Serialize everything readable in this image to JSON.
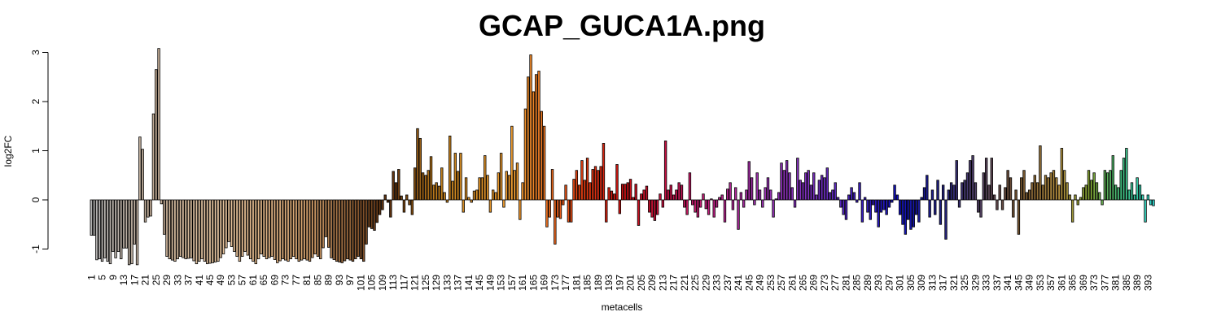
{
  "chart_data": {
    "type": "bar",
    "title": "GCAP_GUCA1A.png",
    "xlabel": "metacells",
    "ylabel": "log2FC",
    "ylim": [
      -1.4,
      3.2
    ],
    "yticks": [
      -1,
      0,
      1,
      2,
      3
    ],
    "x_tick_labels": [
      "1",
      "5",
      "9",
      "13",
      "17",
      "21",
      "25",
      "29",
      "33",
      "37",
      "41",
      "45",
      "49",
      "53",
      "57",
      "61",
      "65",
      "69",
      "73",
      "77",
      "81",
      "85",
      "89",
      "93",
      "97",
      "101",
      "105",
      "109",
      "113",
      "117",
      "121",
      "125",
      "129",
      "133",
      "137",
      "141",
      "145",
      "149",
      "153",
      "157",
      "161",
      "165",
      "169",
      "173",
      "177",
      "181",
      "185",
      "189",
      "193",
      "197",
      "201",
      "205",
      "209",
      "213",
      "217",
      "221",
      "225",
      "229",
      "233",
      "237",
      "241",
      "245",
      "249",
      "253",
      "257",
      "261",
      "265",
      "269",
      "273",
      "277",
      "281",
      "285",
      "289",
      "293",
      "297",
      "301",
      "305",
      "309",
      "313",
      "317",
      "321",
      "325",
      "329",
      "333",
      "337",
      "341",
      "345",
      "349",
      "353",
      "357",
      "361",
      "365",
      "369",
      "373",
      "377",
      "381",
      "385",
      "389",
      "393"
    ],
    "grid": false,
    "legend": "none",
    "anchors": [
      [
        1,
        -0.72
      ],
      [
        2,
        -0.72
      ],
      [
        3,
        -1.22
      ],
      [
        4,
        -1.2
      ],
      [
        5,
        -1.25
      ],
      [
        6,
        -1.18
      ],
      [
        7,
        -1.25
      ],
      [
        8,
        -1.3
      ],
      [
        9,
        -1.05
      ],
      [
        10,
        -1.18
      ],
      [
        11,
        -1.05
      ],
      [
        12,
        -1.2
      ],
      [
        13,
        -0.98
      ],
      [
        14,
        -0.98
      ],
      [
        15,
        -1.32
      ],
      [
        16,
        -1.3
      ],
      [
        17,
        -0.9
      ],
      [
        18,
        -1.32
      ],
      [
        19,
        1.28
      ],
      [
        20,
        1.03
      ],
      [
        21,
        -0.45
      ],
      [
        22,
        -0.35
      ],
      [
        23,
        -0.33
      ],
      [
        24,
        1.75
      ],
      [
        25,
        2.65
      ],
      [
        26,
        3.08
      ],
      [
        27,
        -0.08
      ],
      [
        28,
        -0.7
      ],
      [
        29,
        -1.15
      ],
      [
        30,
        -1.2
      ],
      [
        32,
        -1.25
      ],
      [
        34,
        -1.15
      ],
      [
        36,
        -1.2
      ],
      [
        38,
        -1.18
      ],
      [
        40,
        -1.3
      ],
      [
        42,
        -1.2
      ],
      [
        44,
        -1.3
      ],
      [
        46,
        -1.28
      ],
      [
        48,
        -1.25
      ],
      [
        50,
        -1.1
      ],
      [
        52,
        -0.85
      ],
      [
        54,
        -1.05
      ],
      [
        56,
        -1.25
      ],
      [
        58,
        -1.05
      ],
      [
        60,
        -1.2
      ],
      [
        62,
        -1.3
      ],
      [
        64,
        -1.1
      ],
      [
        66,
        -1.2
      ],
      [
        68,
        -1.15
      ],
      [
        70,
        -1.28
      ],
      [
        72,
        -1.2
      ],
      [
        74,
        -1.25
      ],
      [
        76,
        -1.15
      ],
      [
        78,
        -1.25
      ],
      [
        80,
        -1.2
      ],
      [
        82,
        -1.25
      ],
      [
        84,
        -1.1
      ],
      [
        86,
        -1.2
      ],
      [
        88,
        -0.75
      ],
      [
        90,
        -1.18
      ],
      [
        92,
        -1.25
      ],
      [
        94,
        -1.28
      ],
      [
        96,
        -1.2
      ],
      [
        98,
        -1.25
      ],
      [
        100,
        -1.15
      ],
      [
        102,
        -1.25
      ],
      [
        104,
        -0.55
      ],
      [
        106,
        -0.62
      ],
      [
        108,
        -0.3
      ],
      [
        109,
        -0.2
      ],
      [
        110,
        0.1
      ],
      [
        111,
        -0.05
      ],
      [
        112,
        -0.35
      ],
      [
        113,
        0.58
      ],
      [
        114,
        0.35
      ],
      [
        115,
        0.62
      ],
      [
        116,
        0.08
      ],
      [
        117,
        -0.25
      ],
      [
        118,
        0.1
      ],
      [
        119,
        -0.1
      ],
      [
        120,
        -0.3
      ],
      [
        121,
        0.65
      ],
      [
        122,
        1.45
      ],
      [
        123,
        1.25
      ],
      [
        124,
        0.55
      ],
      [
        125,
        0.5
      ],
      [
        126,
        0.6
      ],
      [
        127,
        0.88
      ],
      [
        128,
        0.3
      ],
      [
        129,
        0.35
      ],
      [
        130,
        0.28
      ],
      [
        131,
        0.65
      ],
      [
        132,
        0.15
      ],
      [
        133,
        -0.05
      ],
      [
        134,
        1.3
      ],
      [
        135,
        0.38
      ],
      [
        136,
        0.95
      ],
      [
        137,
        0.58
      ],
      [
        138,
        0.95
      ],
      [
        139,
        -0.25
      ],
      [
        140,
        0.45
      ],
      [
        141,
        0.05
      ],
      [
        142,
        -0.05
      ],
      [
        143,
        0.18
      ],
      [
        144,
        0.2
      ],
      [
        145,
        0.45
      ],
      [
        146,
        0.45
      ],
      [
        147,
        0.9
      ],
      [
        148,
        0.5
      ],
      [
        149,
        -0.25
      ],
      [
        150,
        0.2
      ],
      [
        151,
        0.15
      ],
      [
        152,
        0.55
      ],
      [
        153,
        0.95
      ],
      [
        154,
        -0.15
      ],
      [
        155,
        0.58
      ],
      [
        156,
        0.5
      ],
      [
        157,
        1.5
      ],
      [
        158,
        0.6
      ],
      [
        159,
        0.75
      ],
      [
        160,
        -0.4
      ],
      [
        161,
        0.35
      ],
      [
        162,
        1.85
      ],
      [
        163,
        2.5
      ],
      [
        164,
        2.95
      ],
      [
        165,
        2.2
      ],
      [
        166,
        2.55
      ],
      [
        167,
        2.62
      ],
      [
        168,
        1.8
      ],
      [
        169,
        1.5
      ],
      [
        170,
        -0.55
      ],
      [
        171,
        -0.35
      ],
      [
        172,
        0.62
      ],
      [
        173,
        -0.9
      ],
      [
        174,
        -0.35
      ],
      [
        175,
        -0.38
      ],
      [
        176,
        -0.1
      ],
      [
        177,
        0.3
      ],
      [
        178,
        -0.45
      ],
      [
        179,
        -0.45
      ],
      [
        180,
        0.42
      ],
      [
        181,
        0.6
      ],
      [
        182,
        0.3
      ],
      [
        183,
        0.8
      ],
      [
        184,
        0.4
      ],
      [
        185,
        0.85
      ],
      [
        186,
        0.35
      ],
      [
        187,
        0.62
      ],
      [
        188,
        0.68
      ],
      [
        189,
        0.6
      ],
      [
        190,
        0.68
      ],
      [
        191,
        1.15
      ],
      [
        192,
        -0.45
      ],
      [
        193,
        0.25
      ],
      [
        194,
        0.18
      ],
      [
        195,
        0.12
      ],
      [
        196,
        0.72
      ],
      [
        197,
        -0.28
      ],
      [
        198,
        0.32
      ],
      [
        199,
        0.32
      ],
      [
        200,
        0.35
      ],
      [
        201,
        0.42
      ],
      [
        202,
        0.05
      ],
      [
        203,
        0.32
      ],
      [
        204,
        -0.52
      ],
      [
        205,
        0.12
      ],
      [
        206,
        0.2
      ],
      [
        207,
        0.28
      ],
      [
        208,
        -0.25
      ],
      [
        209,
        -0.35
      ],
      [
        210,
        -0.42
      ],
      [
        211,
        -0.3
      ],
      [
        212,
        0.12
      ],
      [
        213,
        -0.15
      ],
      [
        214,
        1.2
      ],
      [
        215,
        0.2
      ],
      [
        216,
        0.3
      ],
      [
        217,
        0.1
      ],
      [
        218,
        0.2
      ],
      [
        219,
        0.35
      ],
      [
        220,
        0.3
      ],
      [
        221,
        -0.15
      ],
      [
        222,
        -0.3
      ],
      [
        223,
        0.55
      ],
      [
        224,
        -0.1
      ],
      [
        225,
        -0.25
      ],
      [
        226,
        -0.35
      ],
      [
        227,
        -0.15
      ],
      [
        228,
        0.12
      ],
      [
        229,
        -0.18
      ],
      [
        230,
        -0.3
      ],
      [
        231,
        0.02
      ],
      [
        232,
        -0.35
      ],
      [
        233,
        -0.15
      ],
      [
        234,
        0.05
      ],
      [
        235,
        0.1
      ],
      [
        236,
        -0.45
      ],
      [
        237,
        0.22
      ],
      [
        238,
        0.35
      ],
      [
        239,
        -0.2
      ],
      [
        240,
        0.25
      ],
      [
        241,
        -0.6
      ],
      [
        242,
        0.15
      ],
      [
        243,
        -0.15
      ],
      [
        244,
        0.2
      ],
      [
        245,
        0.78
      ],
      [
        246,
        0.45
      ],
      [
        247,
        -0.1
      ],
      [
        248,
        0.55
      ],
      [
        249,
        0.2
      ],
      [
        250,
        -0.15
      ],
      [
        251,
        0.25
      ],
      [
        252,
        0.45
      ],
      [
        253,
        0.2
      ],
      [
        254,
        -0.35
      ],
      [
        255,
        0.02
      ],
      [
        256,
        0.15
      ],
      [
        257,
        0.75
      ],
      [
        258,
        0.6
      ],
      [
        259,
        0.8
      ],
      [
        260,
        0.55
      ],
      [
        261,
        0.25
      ],
      [
        262,
        -0.15
      ],
      [
        263,
        0.85
      ],
      [
        264,
        0.4
      ],
      [
        265,
        0.35
      ],
      [
        266,
        0.55
      ],
      [
        267,
        0.6
      ],
      [
        268,
        0.3
      ],
      [
        269,
        0.55
      ],
      [
        270,
        0.1
      ],
      [
        271,
        0.4
      ],
      [
        272,
        0.5
      ],
      [
        273,
        0.45
      ],
      [
        274,
        0.65
      ],
      [
        275,
        0.15
      ],
      [
        276,
        0.2
      ],
      [
        277,
        0.35
      ],
      [
        278,
        0.05
      ],
      [
        279,
        -0.15
      ],
      [
        280,
        -0.3
      ],
      [
        281,
        -0.4
      ],
      [
        282,
        0.1
      ],
      [
        283,
        0.25
      ],
      [
        284,
        0.15
      ],
      [
        285,
        -0.05
      ],
      [
        286,
        0.35
      ],
      [
        287,
        -0.45
      ],
      [
        288,
        0.05
      ],
      [
        289,
        -0.25
      ],
      [
        290,
        -0.4
      ],
      [
        291,
        -0.1
      ],
      [
        292,
        -0.25
      ],
      [
        293,
        -0.55
      ],
      [
        294,
        -0.25
      ],
      [
        295,
        -0.2
      ],
      [
        296,
        -0.3
      ],
      [
        297,
        -0.15
      ],
      [
        298,
        -0.05
      ],
      [
        299,
        0.3
      ],
      [
        300,
        0.1
      ],
      [
        301,
        -0.3
      ],
      [
        302,
        -0.5
      ],
      [
        303,
        -0.7
      ],
      [
        304,
        -0.4
      ],
      [
        305,
        -0.6
      ],
      [
        306,
        -0.55
      ],
      [
        307,
        -0.3
      ],
      [
        308,
        -0.45
      ],
      [
        309,
        0.05
      ],
      [
        310,
        0.25
      ],
      [
        311,
        0.5
      ],
      [
        312,
        -0.35
      ],
      [
        313,
        0.2
      ],
      [
        314,
        -0.3
      ],
      [
        315,
        0.4
      ],
      [
        316,
        -0.5
      ],
      [
        317,
        0.3
      ],
      [
        318,
        -0.8
      ],
      [
        319,
        0.2
      ],
      [
        320,
        0.35
      ],
      [
        321,
        0.3
      ],
      [
        322,
        0.8
      ],
      [
        323,
        -0.15
      ],
      [
        324,
        0.35
      ],
      [
        325,
        0.4
      ],
      [
        326,
        0.55
      ],
      [
        327,
        0.8
      ],
      [
        328,
        0.9
      ],
      [
        329,
        0.35
      ],
      [
        330,
        -0.25
      ],
      [
        331,
        -0.35
      ],
      [
        332,
        0.55
      ],
      [
        333,
        0.85
      ],
      [
        334,
        0.3
      ],
      [
        335,
        0.85
      ],
      [
        336,
        0.1
      ],
      [
        337,
        -0.2
      ],
      [
        338,
        0.3
      ],
      [
        339,
        -0.2
      ],
      [
        340,
        0.25
      ],
      [
        341,
        0.6
      ],
      [
        342,
        0.45
      ],
      [
        343,
        -0.35
      ],
      [
        344,
        0.2
      ],
      [
        345,
        -0.7
      ],
      [
        346,
        0.45
      ],
      [
        347,
        0.6
      ],
      [
        348,
        0.15
      ],
      [
        349,
        0.2
      ],
      [
        350,
        0.35
      ],
      [
        351,
        0.5
      ],
      [
        352,
        0.35
      ],
      [
        353,
        1.1
      ],
      [
        354,
        0.3
      ],
      [
        355,
        0.5
      ],
      [
        356,
        0.45
      ],
      [
        357,
        0.55
      ],
      [
        358,
        0.6
      ],
      [
        359,
        0.45
      ],
      [
        360,
        0.3
      ],
      [
        361,
        1.05
      ],
      [
        362,
        0.6
      ],
      [
        363,
        0.35
      ],
      [
        364,
        0.1
      ],
      [
        365,
        -0.45
      ],
      [
        366,
        0.1
      ],
      [
        367,
        -0.1
      ],
      [
        368,
        0.05
      ],
      [
        369,
        0.25
      ],
      [
        370,
        0.3
      ],
      [
        371,
        0.6
      ],
      [
        372,
        0.4
      ],
      [
        373,
        0.55
      ],
      [
        374,
        0.35
      ],
      [
        375,
        0.15
      ],
      [
        376,
        -0.1
      ],
      [
        377,
        0.6
      ],
      [
        378,
        0.55
      ],
      [
        379,
        0.6
      ],
      [
        380,
        0.9
      ],
      [
        381,
        0.3
      ],
      [
        382,
        0.25
      ],
      [
        383,
        0.6
      ],
      [
        384,
        0.85
      ],
      [
        385,
        1.05
      ],
      [
        386,
        0.2
      ],
      [
        387,
        0.35
      ],
      [
        388,
        0.1
      ],
      [
        389,
        0.45
      ],
      [
        390,
        0.3
      ],
      [
        391,
        0.1
      ],
      [
        392,
        -0.45
      ],
      [
        393,
        0.1
      ],
      [
        394,
        -0.1
      ],
      [
        395,
        -0.12
      ]
    ],
    "color_stops": [
      [
        0,
        "#b5b5b5"
      ],
      [
        0.06,
        "#c8b19a"
      ],
      [
        0.12,
        "#e8c6a0"
      ],
      [
        0.2,
        "#d9a570"
      ],
      [
        0.28,
        "#5a2d0c"
      ],
      [
        0.33,
        "#c8841e"
      ],
      [
        0.4,
        "#f5a030"
      ],
      [
        0.46,
        "#e84010"
      ],
      [
        0.5,
        "#d01010"
      ],
      [
        0.54,
        "#c81040"
      ],
      [
        0.58,
        "#c82080"
      ],
      [
        0.63,
        "#9a30b0"
      ],
      [
        0.68,
        "#7a30c0"
      ],
      [
        0.72,
        "#4020c0"
      ],
      [
        0.76,
        "#1010c0"
      ],
      [
        0.8,
        "#202080"
      ],
      [
        0.83,
        "#504070"
      ],
      [
        0.87,
        "#705030"
      ],
      [
        0.91,
        "#b89040"
      ],
      [
        0.94,
        "#80a030"
      ],
      [
        0.97,
        "#40c080"
      ],
      [
        1.0,
        "#30d8d0"
      ]
    ]
  }
}
